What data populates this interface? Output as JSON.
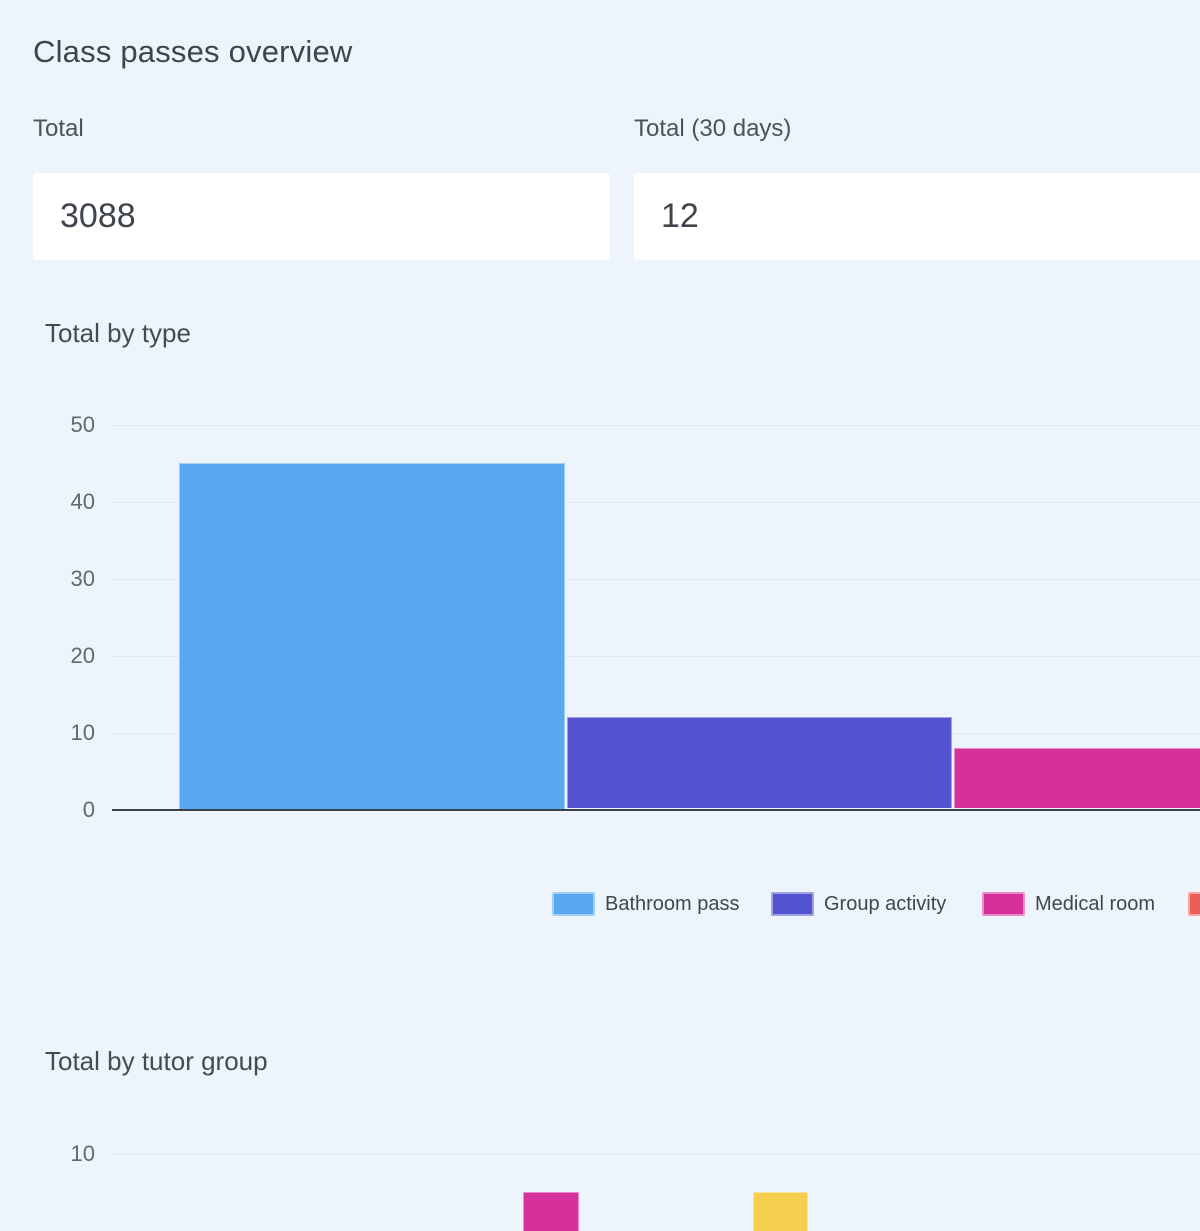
{
  "page": {
    "title": "Class passes overview"
  },
  "stats": [
    {
      "label": "Total",
      "value": "3088"
    },
    {
      "label": "Total (30 days)",
      "value": "12"
    }
  ],
  "colors": {
    "background": "#edf4fc",
    "card": "#ffffff",
    "axis_line": "#39404c",
    "gridline": "#dfe9f5",
    "bathroom_pass": "#58a8f1",
    "group_activity": "#5254cf",
    "medical_room": "#d6309d",
    "fourth_type_clipped": "#ea5f58",
    "tutor_group_bar_1": "#d6309d",
    "tutor_group_bar_2": "#f6ce4d"
  },
  "chart_data": [
    {
      "type": "bar",
      "title": "Total by type",
      "categories": [
        "Bathroom pass",
        "Group activity",
        "Medical room",
        ""
      ],
      "values": [
        45,
        12,
        8,
        null
      ],
      "colors": [
        "#58a8f1",
        "#5254cf",
        "#d6309d",
        "#ea5f58"
      ],
      "yticks": [
        50,
        40,
        30,
        20,
        10,
        0
      ],
      "ylim": [
        0,
        50
      ],
      "grid": true,
      "legend_position": "bottom",
      "legend": [
        {
          "label": "Bathroom pass",
          "color": "#58a8f1",
          "clipped": false
        },
        {
          "label": "Group activity",
          "color": "#5254cf",
          "clipped": false
        },
        {
          "label": "Medical room",
          "color": "#d6309d",
          "clipped": false
        },
        {
          "label": "",
          "color": "#ea5f58",
          "clipped": true
        }
      ],
      "clipped_right": true
    },
    {
      "type": "bar",
      "title": "Total by tutor group",
      "yticks_visible": [
        10
      ],
      "bars_visible": [
        {
          "value": 5,
          "color": "#d6309d"
        },
        {
          "value": 5,
          "color": "#f6ce4d"
        }
      ],
      "clipped_bottom": true
    }
  ]
}
